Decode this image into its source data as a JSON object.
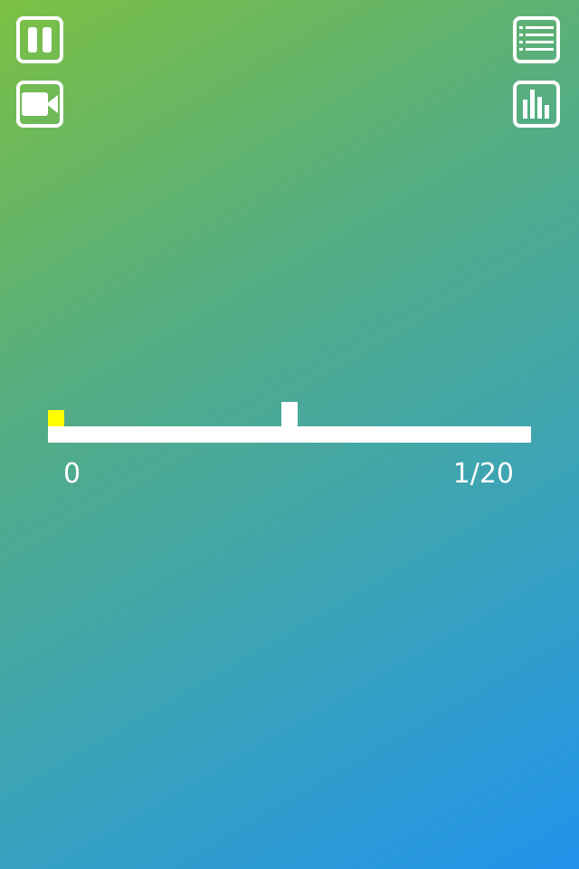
{
  "controls": {
    "pause": "pause-icon",
    "video": "video-camera-icon",
    "menu": "list-menu-icon",
    "stats": "bar-chart-icon"
  },
  "game": {
    "score": "0",
    "level": "1/20",
    "player_color": "#ffff00",
    "track_color": "#ffffff"
  },
  "theme": {
    "gradient_start": "#7cc043",
    "gradient_end": "#2193ec"
  }
}
